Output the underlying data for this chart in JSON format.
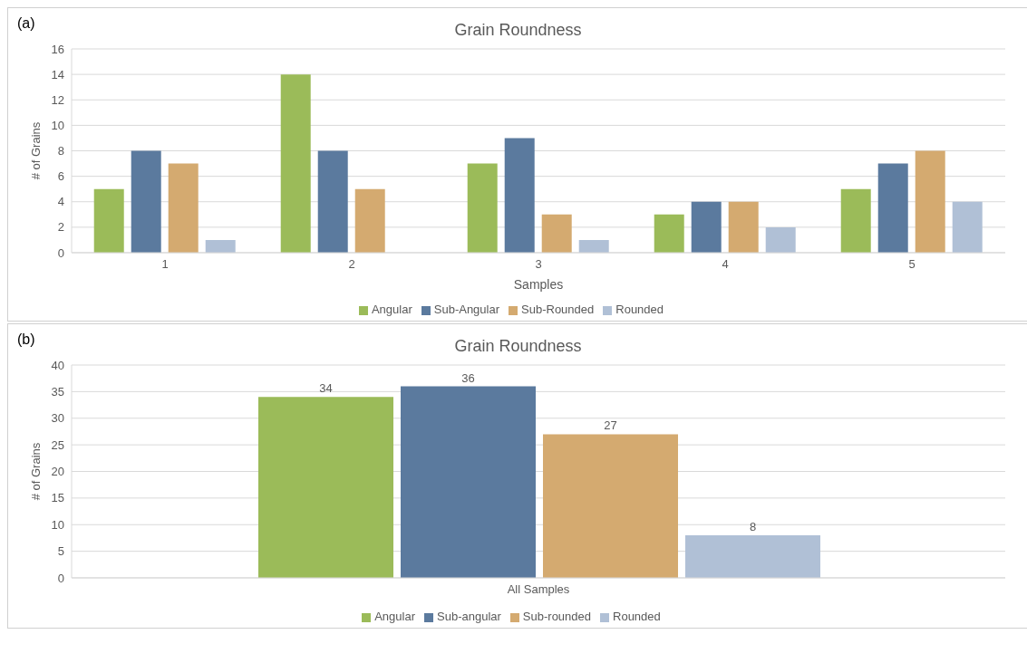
{
  "chart_data": [
    {
      "type": "bar",
      "title": "Grain Roundness",
      "xlabel": "Samples",
      "ylabel": "# of Grains",
      "annotations": [
        "(a)"
      ],
      "categories": [
        "1",
        "2",
        "3",
        "4",
        "5"
      ],
      "series": [
        {
          "name": "Angular",
          "color": "#9bbb59",
          "values": [
            5,
            14,
            7,
            3,
            5
          ]
        },
        {
          "name": "Sub-Angular",
          "color": "#5b7a9e",
          "values": [
            8,
            8,
            9,
            4,
            7
          ]
        },
        {
          "name": "Sub-Rounded",
          "color": "#d4aa70",
          "values": [
            7,
            5,
            3,
            4,
            8
          ]
        },
        {
          "name": "Rounded",
          "color": "#b0c0d6",
          "values": [
            1,
            0,
            1,
            2,
            4
          ]
        }
      ],
      "ylim": [
        0,
        16
      ],
      "yticks": [
        0,
        2,
        4,
        6,
        8,
        10,
        12,
        14,
        16
      ],
      "grid": "y",
      "legend": "bottom"
    },
    {
      "type": "bar",
      "title": "Grain Roundness",
      "ylabel": "# of Grains",
      "annotations": [
        "(b)"
      ],
      "categories": [
        "All Samples"
      ],
      "series": [
        {
          "name": "Angular",
          "color": "#9bbb59",
          "values": [
            34
          ]
        },
        {
          "name": "Sub-angular",
          "color": "#5b7a9e",
          "values": [
            36
          ]
        },
        {
          "name": "Sub-rounded",
          "color": "#d4aa70",
          "values": [
            27
          ]
        },
        {
          "name": "Rounded",
          "color": "#b0c0d6",
          "values": [
            8
          ]
        }
      ],
      "ylim": [
        0,
        40
      ],
      "yticks": [
        0,
        5,
        10,
        15,
        20,
        25,
        30,
        35,
        40
      ],
      "grid": "y",
      "legend": "bottom",
      "data_labels": true
    }
  ]
}
